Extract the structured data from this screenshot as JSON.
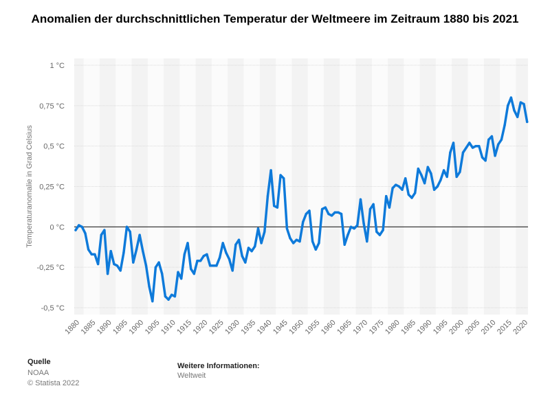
{
  "chart_data": {
    "type": "line",
    "title": "Anomalien der durchschnittlichen Temperatur der Weltmeere im Zeitraum 1880 bis 2021",
    "xlabel": "",
    "ylabel": "Temperaturanomalie in Grad Celsius",
    "xlim": [
      1880,
      2021
    ],
    "ylim": [
      -0.5,
      1
    ],
    "grid": true,
    "line_color": "#0e7ada",
    "x_ticks": [
      1880,
      1885,
      1890,
      1895,
      1900,
      1905,
      1910,
      1915,
      1920,
      1925,
      1930,
      1935,
      1940,
      1945,
      1950,
      1955,
      1960,
      1965,
      1970,
      1975,
      1980,
      1985,
      1990,
      1995,
      2000,
      2005,
      2010,
      2015,
      2020
    ],
    "y_ticks": [
      {
        "value": 1,
        "label": "1 °C"
      },
      {
        "value": 0.75,
        "label": "0,75 °C"
      },
      {
        "value": 0.5,
        "label": "0,5 °C"
      },
      {
        "value": 0.25,
        "label": "0,25 °C"
      },
      {
        "value": 0,
        "label": "0 °C"
      },
      {
        "value": -0.25,
        "label": "-0,25 °C"
      },
      {
        "value": -0.5,
        "label": "-0,5 °C"
      }
    ],
    "x": [
      1880,
      1881,
      1882,
      1883,
      1884,
      1885,
      1886,
      1887,
      1888,
      1889,
      1890,
      1891,
      1892,
      1893,
      1894,
      1895,
      1896,
      1897,
      1898,
      1899,
      1900,
      1901,
      1902,
      1903,
      1904,
      1905,
      1906,
      1907,
      1908,
      1909,
      1910,
      1911,
      1912,
      1913,
      1914,
      1915,
      1916,
      1917,
      1918,
      1919,
      1920,
      1921,
      1922,
      1923,
      1924,
      1925,
      1926,
      1927,
      1928,
      1929,
      1930,
      1931,
      1932,
      1933,
      1934,
      1935,
      1936,
      1937,
      1938,
      1939,
      1940,
      1941,
      1942,
      1943,
      1944,
      1945,
      1946,
      1947,
      1948,
      1949,
      1950,
      1951,
      1952,
      1953,
      1954,
      1955,
      1956,
      1957,
      1958,
      1959,
      1960,
      1961,
      1962,
      1963,
      1964,
      1965,
      1966,
      1967,
      1968,
      1969,
      1970,
      1971,
      1972,
      1973,
      1974,
      1975,
      1976,
      1977,
      1978,
      1979,
      1980,
      1981,
      1982,
      1983,
      1984,
      1985,
      1986,
      1987,
      1988,
      1989,
      1990,
      1991,
      1992,
      1993,
      1994,
      1995,
      1996,
      1997,
      1998,
      1999,
      2000,
      2001,
      2002,
      2003,
      2004,
      2005,
      2006,
      2007,
      2008,
      2009,
      2010,
      2011,
      2012,
      2013,
      2014,
      2015,
      2016,
      2017,
      2018,
      2019,
      2020,
      2021
    ],
    "values": [
      -0.02,
      0.01,
      0.0,
      -0.04,
      -0.14,
      -0.17,
      -0.17,
      -0.23,
      -0.05,
      -0.02,
      -0.29,
      -0.15,
      -0.23,
      -0.24,
      -0.27,
      -0.16,
      0.0,
      -0.03,
      -0.22,
      -0.14,
      -0.05,
      -0.15,
      -0.24,
      -0.37,
      -0.46,
      -0.25,
      -0.22,
      -0.29,
      -0.43,
      -0.45,
      -0.42,
      -0.43,
      -0.28,
      -0.32,
      -0.17,
      -0.1,
      -0.26,
      -0.29,
      -0.21,
      -0.21,
      -0.18,
      -0.17,
      -0.24,
      -0.24,
      -0.24,
      -0.19,
      -0.1,
      -0.16,
      -0.2,
      -0.27,
      -0.11,
      -0.08,
      -0.18,
      -0.22,
      -0.13,
      -0.15,
      -0.12,
      -0.01,
      -0.1,
      -0.03,
      0.19,
      0.35,
      0.13,
      0.12,
      0.32,
      0.3,
      -0.01,
      -0.07,
      -0.1,
      -0.08,
      -0.09,
      0.03,
      0.08,
      0.1,
      -0.09,
      -0.14,
      -0.1,
      0.11,
      0.12,
      0.08,
      0.07,
      0.09,
      0.09,
      0.08,
      -0.11,
      -0.05,
      0.0,
      -0.01,
      0.01,
      0.17,
      0.02,
      -0.09,
      0.11,
      0.14,
      -0.03,
      -0.05,
      -0.02,
      0.19,
      0.12,
      0.24,
      0.26,
      0.25,
      0.23,
      0.3,
      0.2,
      0.18,
      0.21,
      0.36,
      0.32,
      0.27,
      0.37,
      0.33,
      0.23,
      0.25,
      0.29,
      0.35,
      0.31,
      0.46,
      0.52,
      0.31,
      0.34,
      0.46,
      0.49,
      0.52,
      0.49,
      0.5,
      0.5,
      0.43,
      0.41,
      0.54,
      0.56,
      0.44,
      0.51,
      0.54,
      0.63,
      0.75,
      0.8,
      0.72,
      0.68,
      0.77,
      0.76,
      0.65
    ]
  },
  "footer": {
    "source_label": "Quelle",
    "source": "NOAA",
    "copyright": "© Statista 2022",
    "info_label": "Weitere Informationen:",
    "info": "Weltweit"
  }
}
